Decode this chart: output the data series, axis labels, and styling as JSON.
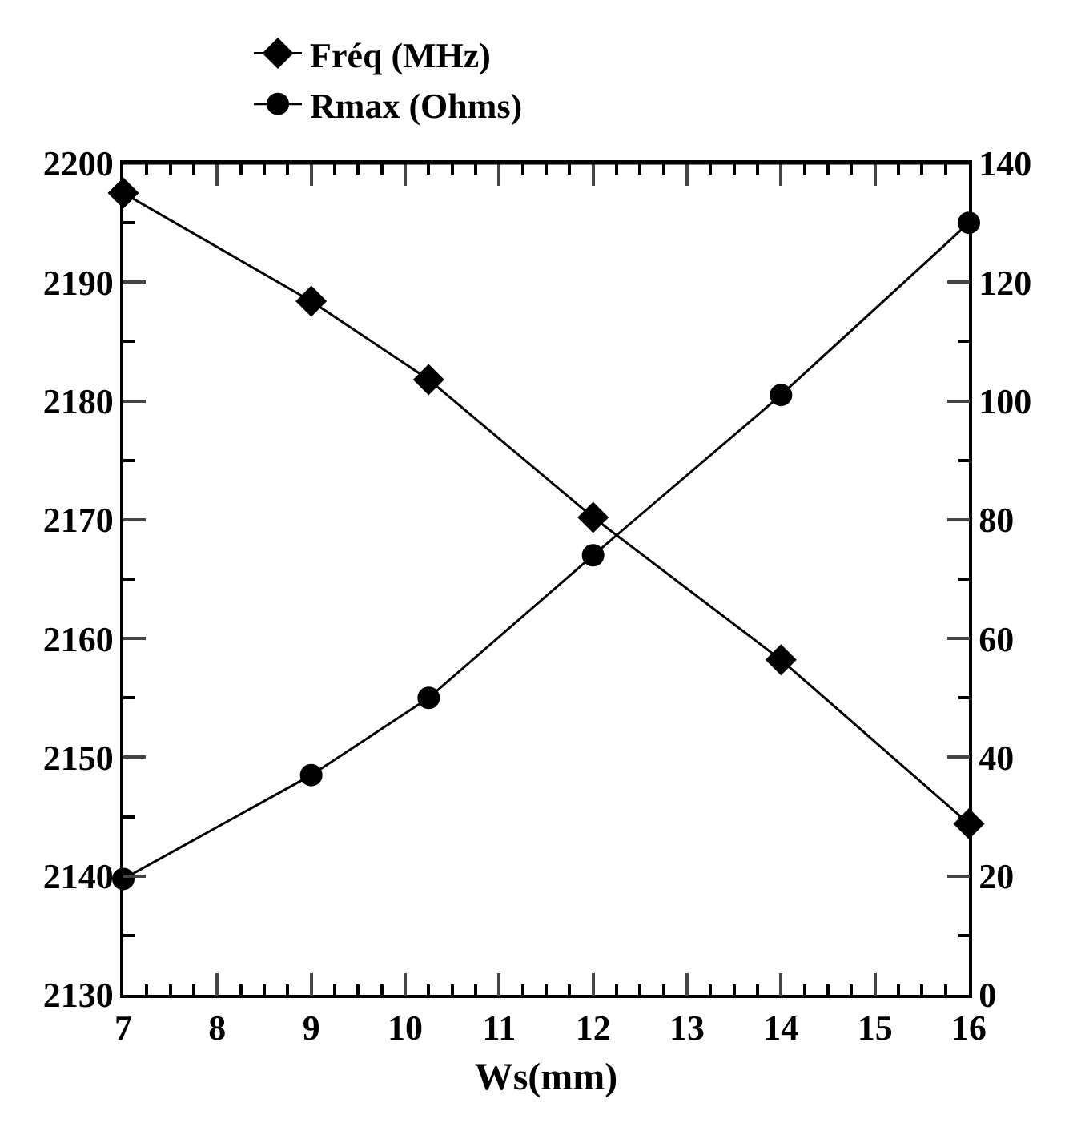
{
  "chart_data": {
    "type": "line",
    "xlabel": "Ws(mm)",
    "x": [
      7,
      9,
      10.25,
      12,
      14,
      16
    ],
    "series": [
      {
        "name": "Fréq (MHz)",
        "color": "#000000",
        "marker": "diamond",
        "values": [
          2197.5,
          2188.4,
          2181.8,
          2170.2,
          2158.2,
          2144.4
        ]
      },
      {
        "name": "Rmax (Ohms)",
        "color": "#000000",
        "marker": "circle",
        "axis": "y2",
        "values": [
          19.5,
          37,
          50,
          74,
          101,
          130
        ]
      }
    ],
    "xlim": [
      7,
      16
    ],
    "xticks": [
      7,
      8,
      9,
      10,
      11,
      12,
      13,
      14,
      15,
      16
    ],
    "ylim": [
      2130,
      2200
    ],
    "yticks": [
      2130,
      2140,
      2150,
      2160,
      2170,
      2180,
      2190,
      2200
    ],
    "y2lim": [
      0,
      140
    ],
    "y2ticks": [
      0,
      20,
      40,
      60,
      80,
      100,
      120,
      140
    ],
    "grid": false,
    "legend": "top",
    "line_style": "solid"
  }
}
